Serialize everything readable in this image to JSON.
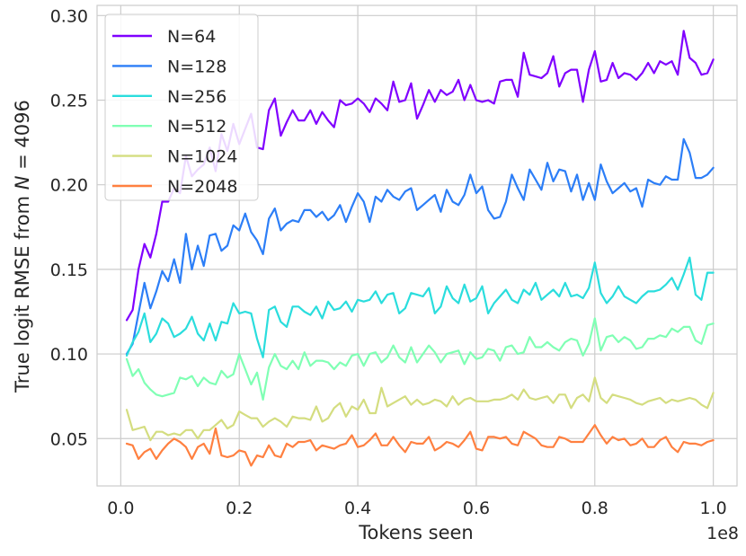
{
  "chart_data": {
    "type": "line",
    "xlabel": "Tokens seen",
    "ylabel_parts": [
      "True logit RMSE from ",
      "N",
      " = 4096"
    ],
    "x_offset_label": "1e8",
    "xlim": [
      -0.04,
      1.04
    ],
    "ylim": [
      0.022,
      0.306
    ],
    "xticks": [
      0.0,
      0.2,
      0.4,
      0.6,
      0.8,
      1.0
    ],
    "xtick_labels": [
      "0.0",
      "0.2",
      "0.4",
      "0.6",
      "0.8",
      "1.0"
    ],
    "yticks": [
      0.05,
      0.1,
      0.15,
      0.2,
      0.25,
      0.3
    ],
    "ytick_labels": [
      "0.05",
      "0.10",
      "0.15",
      "0.20",
      "0.25",
      "0.30"
    ],
    "grid": true,
    "legend_position": "upper-left",
    "x": [
      0.01,
      0.02,
      0.03,
      0.04,
      0.05,
      0.06,
      0.07,
      0.08,
      0.09,
      0.1,
      0.11,
      0.12,
      0.13,
      0.14,
      0.15,
      0.16,
      0.17,
      0.18,
      0.19,
      0.2,
      0.21,
      0.22,
      0.23,
      0.24,
      0.25,
      0.26,
      0.27,
      0.28,
      0.29,
      0.3,
      0.31,
      0.32,
      0.33,
      0.34,
      0.35,
      0.36,
      0.37,
      0.38,
      0.39,
      0.4,
      0.41,
      0.42,
      0.43,
      0.44,
      0.45,
      0.46,
      0.47,
      0.48,
      0.49,
      0.5,
      0.51,
      0.52,
      0.53,
      0.54,
      0.55,
      0.56,
      0.57,
      0.58,
      0.59,
      0.6,
      0.61,
      0.62,
      0.63,
      0.64,
      0.65,
      0.66,
      0.67,
      0.68,
      0.69,
      0.7,
      0.71,
      0.72,
      0.73,
      0.74,
      0.75,
      0.76,
      0.77,
      0.78,
      0.79,
      0.8,
      0.81,
      0.82,
      0.83,
      0.84,
      0.85,
      0.86,
      0.87,
      0.88,
      0.89,
      0.9,
      0.91,
      0.92,
      0.93,
      0.94,
      0.95,
      0.96,
      0.97,
      0.98,
      0.99,
      1.0
    ],
    "series": [
      {
        "name": "N=64",
        "color": "#8000ff",
        "values": [
          0.12,
          0.126,
          0.15,
          0.165,
          0.157,
          0.171,
          0.19,
          0.19,
          0.198,
          0.195,
          0.217,
          0.205,
          0.209,
          0.212,
          0.222,
          0.208,
          0.23,
          0.22,
          0.236,
          0.224,
          0.233,
          0.242,
          0.222,
          0.221,
          0.244,
          0.251,
          0.229,
          0.237,
          0.244,
          0.238,
          0.238,
          0.244,
          0.236,
          0.243,
          0.238,
          0.234,
          0.25,
          0.247,
          0.248,
          0.251,
          0.248,
          0.243,
          0.251,
          0.248,
          0.244,
          0.261,
          0.249,
          0.25,
          0.26,
          0.239,
          0.247,
          0.256,
          0.249,
          0.256,
          0.253,
          0.255,
          0.262,
          0.25,
          0.259,
          0.25,
          0.249,
          0.25,
          0.248,
          0.261,
          0.262,
          0.262,
          0.252,
          0.278,
          0.265,
          0.264,
          0.263,
          0.266,
          0.276,
          0.258,
          0.266,
          0.268,
          0.268,
          0.249,
          0.268,
          0.279,
          0.261,
          0.262,
          0.272,
          0.263,
          0.266,
          0.265,
          0.262,
          0.266,
          0.272,
          0.266,
          0.273,
          0.271,
          0.273,
          0.265,
          0.291,
          0.275,
          0.272,
          0.265,
          0.266,
          0.274
        ]
      },
      {
        "name": "N=128",
        "color": "#2c7ef7",
        "values": [
          0.1,
          0.106,
          0.124,
          0.142,
          0.127,
          0.137,
          0.149,
          0.143,
          0.156,
          0.142,
          0.171,
          0.15,
          0.164,
          0.152,
          0.17,
          0.171,
          0.161,
          0.164,
          0.176,
          0.173,
          0.183,
          0.172,
          0.167,
          0.159,
          0.18,
          0.186,
          0.173,
          0.177,
          0.179,
          0.178,
          0.185,
          0.185,
          0.181,
          0.184,
          0.179,
          0.182,
          0.188,
          0.178,
          0.187,
          0.195,
          0.19,
          0.178,
          0.193,
          0.19,
          0.197,
          0.193,
          0.191,
          0.196,
          0.198,
          0.185,
          0.188,
          0.191,
          0.194,
          0.184,
          0.197,
          0.19,
          0.188,
          0.194,
          0.206,
          0.195,
          0.199,
          0.185,
          0.18,
          0.181,
          0.19,
          0.206,
          0.198,
          0.191,
          0.209,
          0.203,
          0.197,
          0.213,
          0.202,
          0.209,
          0.208,
          0.196,
          0.206,
          0.191,
          0.201,
          0.191,
          0.212,
          0.202,
          0.195,
          0.198,
          0.201,
          0.196,
          0.198,
          0.187,
          0.203,
          0.201,
          0.2,
          0.205,
          0.203,
          0.203,
          0.227,
          0.219,
          0.204,
          0.204,
          0.206,
          0.21
        ]
      },
      {
        "name": "N=256",
        "color": "#2adddd",
        "values": [
          0.099,
          0.107,
          0.113,
          0.124,
          0.107,
          0.112,
          0.121,
          0.118,
          0.11,
          0.112,
          0.115,
          0.122,
          0.112,
          0.108,
          0.118,
          0.108,
          0.119,
          0.118,
          0.13,
          0.124,
          0.125,
          0.124,
          0.109,
          0.098,
          0.126,
          0.128,
          0.119,
          0.116,
          0.128,
          0.128,
          0.125,
          0.123,
          0.128,
          0.121,
          0.131,
          0.126,
          0.127,
          0.131,
          0.125,
          0.132,
          0.131,
          0.132,
          0.137,
          0.13,
          0.135,
          0.136,
          0.124,
          0.127,
          0.136,
          0.135,
          0.134,
          0.139,
          0.124,
          0.128,
          0.14,
          0.133,
          0.13,
          0.141,
          0.131,
          0.133,
          0.14,
          0.124,
          0.13,
          0.134,
          0.138,
          0.132,
          0.13,
          0.138,
          0.135,
          0.142,
          0.132,
          0.135,
          0.138,
          0.134,
          0.142,
          0.134,
          0.135,
          0.133,
          0.139,
          0.154,
          0.136,
          0.13,
          0.134,
          0.14,
          0.134,
          0.132,
          0.13,
          0.134,
          0.137,
          0.137,
          0.138,
          0.141,
          0.145,
          0.138,
          0.147,
          0.157,
          0.135,
          0.132,
          0.148,
          0.148
        ]
      },
      {
        "name": "N=512",
        "color": "#80ffb4",
        "values": [
          0.097,
          0.087,
          0.091,
          0.083,
          0.079,
          0.076,
          0.075,
          0.076,
          0.077,
          0.086,
          0.085,
          0.087,
          0.081,
          0.086,
          0.083,
          0.082,
          0.09,
          0.086,
          0.088,
          0.1,
          0.091,
          0.082,
          0.089,
          0.073,
          0.092,
          0.1,
          0.093,
          0.091,
          0.096,
          0.091,
          0.101,
          0.093,
          0.096,
          0.096,
          0.095,
          0.091,
          0.095,
          0.093,
          0.099,
          0.1,
          0.093,
          0.1,
          0.101,
          0.095,
          0.098,
          0.105,
          0.098,
          0.095,
          0.104,
          0.095,
          0.1,
          0.105,
          0.101,
          0.095,
          0.1,
          0.101,
          0.102,
          0.094,
          0.101,
          0.097,
          0.098,
          0.103,
          0.102,
          0.096,
          0.104,
          0.105,
          0.1,
          0.101,
          0.11,
          0.104,
          0.104,
          0.107,
          0.104,
          0.102,
          0.107,
          0.109,
          0.108,
          0.099,
          0.106,
          0.121,
          0.102,
          0.11,
          0.111,
          0.107,
          0.11,
          0.108,
          0.103,
          0.104,
          0.109,
          0.109,
          0.111,
          0.11,
          0.115,
          0.113,
          0.116,
          0.116,
          0.108,
          0.106,
          0.117,
          0.118
        ]
      },
      {
        "name": "N=1024",
        "color": "#d4dd80",
        "values": [
          0.067,
          0.055,
          0.056,
          0.057,
          0.049,
          0.054,
          0.054,
          0.052,
          0.053,
          0.052,
          0.055,
          0.055,
          0.05,
          0.055,
          0.055,
          0.058,
          0.061,
          0.056,
          0.058,
          0.066,
          0.064,
          0.062,
          0.062,
          0.057,
          0.06,
          0.062,
          0.06,
          0.057,
          0.063,
          0.062,
          0.062,
          0.061,
          0.069,
          0.06,
          0.062,
          0.068,
          0.071,
          0.063,
          0.069,
          0.067,
          0.073,
          0.065,
          0.065,
          0.08,
          0.069,
          0.071,
          0.073,
          0.075,
          0.07,
          0.073,
          0.07,
          0.071,
          0.073,
          0.072,
          0.069,
          0.075,
          0.07,
          0.073,
          0.074,
          0.072,
          0.072,
          0.072,
          0.073,
          0.073,
          0.074,
          0.076,
          0.073,
          0.079,
          0.074,
          0.073,
          0.074,
          0.075,
          0.071,
          0.076,
          0.076,
          0.068,
          0.074,
          0.076,
          0.072,
          0.086,
          0.074,
          0.071,
          0.076,
          0.075,
          0.074,
          0.073,
          0.071,
          0.07,
          0.072,
          0.073,
          0.074,
          0.071,
          0.073,
          0.072,
          0.073,
          0.074,
          0.073,
          0.07,
          0.068,
          0.077
        ]
      },
      {
        "name": "N=2048",
        "color": "#ff8040",
        "values": [
          0.047,
          0.046,
          0.038,
          0.042,
          0.044,
          0.038,
          0.043,
          0.047,
          0.05,
          0.048,
          0.045,
          0.038,
          0.045,
          0.047,
          0.041,
          0.056,
          0.04,
          0.039,
          0.04,
          0.043,
          0.042,
          0.034,
          0.04,
          0.039,
          0.046,
          0.04,
          0.039,
          0.047,
          0.045,
          0.048,
          0.048,
          0.049,
          0.043,
          0.046,
          0.045,
          0.044,
          0.046,
          0.047,
          0.052,
          0.045,
          0.046,
          0.049,
          0.053,
          0.046,
          0.046,
          0.051,
          0.046,
          0.042,
          0.048,
          0.047,
          0.047,
          0.051,
          0.043,
          0.045,
          0.048,
          0.047,
          0.045,
          0.049,
          0.054,
          0.044,
          0.043,
          0.051,
          0.051,
          0.05,
          0.051,
          0.047,
          0.046,
          0.054,
          0.052,
          0.05,
          0.046,
          0.045,
          0.045,
          0.051,
          0.05,
          0.048,
          0.048,
          0.048,
          0.053,
          0.058,
          0.052,
          0.047,
          0.051,
          0.049,
          0.05,
          0.046,
          0.047,
          0.05,
          0.045,
          0.045,
          0.049,
          0.051,
          0.045,
          0.042,
          0.048,
          0.047,
          0.047,
          0.046,
          0.048,
          0.049
        ]
      }
    ]
  }
}
